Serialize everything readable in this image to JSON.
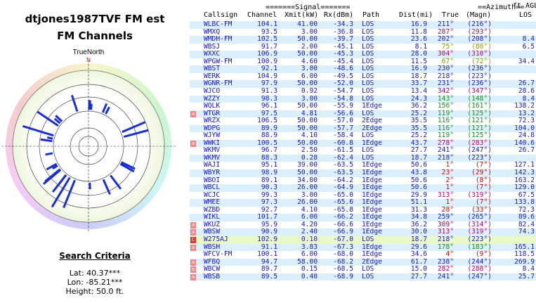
{
  "title": "dtjones1987TVF FM est",
  "subtitle": "FM Channels",
  "compass": {
    "label": "TrueNorth",
    "n": "N"
  },
  "criteria": {
    "heading": "Search Criteria",
    "lat": "Lat: 40.37***",
    "lon": "Lon: -85.21***",
    "height": "Height: 50.0 ft."
  },
  "header": {
    "signal_group": "=======Signal=======",
    "azimuth_group": "==Azimuth==",
    "ft_agl": "ft AGL",
    "columns": [
      "Callsign",
      "Channel",
      "Xmit(kW)",
      "Rx(dBm)",
      "Path",
      "Dist(mi)",
      "True",
      "(Magn)",
      "LOS"
    ]
  },
  "colors": {
    "row_even": "#dcefff",
    "row_highlight": "#eaf9c8",
    "text": "#1515c8",
    "grid": "#cccccc",
    "bar": "#1a2fd1"
  },
  "rows": [
    {
      "call": "WLBC-FM",
      "ch": "104.1",
      "kw": "41.00",
      "rx": "-34.3",
      "path": "LOS",
      "dist": "16.9",
      "true": "211°",
      "magn": "(216°)",
      "los": "",
      "color": "#1515c8",
      "flag": ""
    },
    {
      "call": "WMXQ",
      "ch": "93.5",
      "kw": "3.00",
      "rx": "-36.8",
      "path": "LOS",
      "dist": "11.8",
      "true": "287°",
      "magn": "(293°)",
      "los": "",
      "color": "#9b1463",
      "flag": ""
    },
    {
      "call": "WMDH-FM",
      "ch": "102.5",
      "kw": "50.00",
      "rx": "-39.7",
      "path": "LOS",
      "dist": "23.6",
      "true": "202°",
      "magn": "(208°)",
      "los": "8.4",
      "color": "#1515c8",
      "flag": ""
    },
    {
      "call": "WBSJ",
      "ch": "91.7",
      "kw": "2.00",
      "rx": "-45.1",
      "path": "LOS",
      "dist": "8.1",
      "true": "75°",
      "magn": "(80°)",
      "los": "6.5",
      "color": "#9a9a00",
      "flag": ""
    },
    {
      "call": "WXXC",
      "ch": "106.9",
      "kw": "50.00",
      "rx": "-45.3",
      "path": "LOS",
      "dist": "28.0",
      "true": "304°",
      "magn": "(310°)",
      "los": "",
      "color": "#b0006f",
      "flag": ""
    },
    {
      "call": "WPGW-FM",
      "ch": "100.9",
      "kw": "4.60",
      "rx": "-45.4",
      "path": "LOS",
      "dist": "11.5",
      "true": "67°",
      "magn": "(72°)",
      "los": "34.4",
      "color": "#8a9a00",
      "flag": ""
    },
    {
      "call": "WBST",
      "ch": "92.1",
      "kw": "3.00",
      "rx": "-48.6",
      "path": "LOS",
      "dist": "16.9",
      "true": "230°",
      "magn": "(236°)",
      "los": "",
      "color": "#1515c8",
      "flag": ""
    },
    {
      "call": "WERK",
      "ch": "104.9",
      "kw": "6.00",
      "rx": "-49.5",
      "path": "LOS",
      "dist": "18.7",
      "true": "218°",
      "magn": "(223°)",
      "los": "",
      "color": "#1515c8",
      "flag": ""
    },
    {
      "call": "WGNR-FM",
      "ch": "97.9",
      "kw": "50.00",
      "rx": "-52.0",
      "path": "LOS",
      "dist": "33.7",
      "true": "231°",
      "magn": "(236°)",
      "los": "26.7",
      "color": "#1515c8",
      "flag": ""
    },
    {
      "call": "WJCO",
      "ch": "91.3",
      "kw": "0.92",
      "rx": "-54.7",
      "path": "LOS",
      "dist": "13.4",
      "true": "342°",
      "magn": "(347°)",
      "los": "28.6",
      "color": "#b0006f",
      "flag": ""
    },
    {
      "call": "WZZY",
      "ch": "98.3",
      "kw": "3.00",
      "rx": "-54.8",
      "path": "LOS",
      "dist": "24.3",
      "true": "143°",
      "magn": "(148°)",
      "los": "8.4",
      "color": "#1a8a1a",
      "flag": ""
    },
    {
      "call": "WQLK",
      "ch": "96.1",
      "kw": "50.00",
      "rx": "-55.9",
      "path": "1Edge",
      "dist": "36.2",
      "true": "156°",
      "magn": "(161°)",
      "los": "138.2",
      "color": "#1a8a1a",
      "flag": ""
    },
    {
      "call": "WTGR",
      "ch": "97.5",
      "kw": "4.81",
      "rx": "-56.6",
      "path": "LOS",
      "dist": "25.2",
      "true": "119°",
      "magn": "(125°)",
      "los": "13.2",
      "color": "#1a8a1a",
      "flag": "a"
    },
    {
      "call": "WRZX",
      "ch": "106.5",
      "kw": "50.00",
      "rx": "-57.0",
      "path": "2Edge",
      "dist": "35.5",
      "true": "116°",
      "magn": "(121°)",
      "los": "72.3",
      "color": "#1a8a1a",
      "flag": ""
    },
    {
      "call": "WDPG",
      "ch": "89.9",
      "kw": "50.00",
      "rx": "-57.7",
      "path": "2Edge",
      "dist": "35.5",
      "true": "116°",
      "magn": "(121°)",
      "los": "104.0",
      "color": "#1a8a1a",
      "flag": ""
    },
    {
      "call": "WJYW",
      "ch": "88.9",
      "kw": "4.10",
      "rx": "-58.4",
      "path": "LOS",
      "dist": "25.2",
      "true": "119°",
      "magn": "(125°)",
      "los": "24.8",
      "color": "#1a8a1a",
      "flag": ""
    },
    {
      "call": "WWKI",
      "ch": "100.5",
      "kw": "50.00",
      "rx": "-60.8",
      "path": "1Edge",
      "dist": "43.7",
      "true": "278°",
      "magn": "(283°)",
      "los": "140.6",
      "color": "#b0006f",
      "flag": "a"
    },
    {
      "call": "WKMV",
      "ch": "96.7",
      "kw": "2.50",
      "rx": "-61.5",
      "path": "LOS",
      "dist": "27.7",
      "true": "241°",
      "magn": "(247°)",
      "los": "26.7",
      "color": "#1515c8",
      "flag": ""
    },
    {
      "call": "WKMV",
      "ch": "88.3",
      "kw": "0.28",
      "rx": "-62.4",
      "path": "LOS",
      "dist": "18.7",
      "true": "218°",
      "magn": "(223°)",
      "los": "",
      "color": "#1515c8",
      "flag": ""
    },
    {
      "call": "WAJI",
      "ch": "95.1",
      "kw": "39.00",
      "rx": "-63.5",
      "path": "1Edge",
      "dist": "50.6",
      "true": "1°",
      "magn": "(7°)",
      "los": "127.1",
      "color": "#d00000",
      "flag": ""
    },
    {
      "call": "WBYR",
      "ch": "98.9",
      "kw": "50.00",
      "rx": "-63.5",
      "path": "1Edge",
      "dist": "43.8",
      "true": "23°",
      "magn": "(29°)",
      "los": "142.3",
      "color": "#d00000",
      "flag": ""
    },
    {
      "call": "WBOI",
      "ch": "89.1",
      "kw": "34.00",
      "rx": "-64.2",
      "path": "1Edge",
      "dist": "50.6",
      "true": "2°",
      "magn": "(8°)",
      "los": "163.2",
      "color": "#d00000",
      "flag": ""
    },
    {
      "call": "WBCL",
      "ch": "90.3",
      "kw": "26.00",
      "rx": "-64.9",
      "path": "1Edge",
      "dist": "50.6",
      "true": "1°",
      "magn": "(7°)",
      "los": "129.0",
      "color": "#d00000",
      "flag": ""
    },
    {
      "call": "WCJC",
      "ch": "99.3",
      "kw": "3.00",
      "rx": "-65.0",
      "path": "1Edge",
      "dist": "29.9",
      "true": "313°",
      "magn": "(319°)",
      "los": "67.5",
      "color": "#b0006f",
      "flag": ""
    },
    {
      "call": "WMEE",
      "ch": "97.3",
      "kw": "26.00",
      "rx": "-65.6",
      "path": "1Edge",
      "dist": "51.1",
      "true": "1°",
      "magn": "(7°)",
      "los": "133.8",
      "color": "#d00000",
      "flag": ""
    },
    {
      "call": "WZBD",
      "ch": "92.7",
      "kw": "4.10",
      "rx": "-65.8",
      "path": "1Edge",
      "dist": "31.3",
      "true": "28°",
      "magn": "(33°)",
      "los": "72.3",
      "color": "#d00000",
      "flag": ""
    },
    {
      "call": "WIKL",
      "ch": "101.7",
      "kw": "6.00",
      "rx": "-66.2",
      "path": "1Edge",
      "dist": "34.8",
      "true": "259°",
      "magn": "(265°)",
      "los": "89.6",
      "color": "#1515c8",
      "flag": ""
    },
    {
      "call": "WKUZ",
      "ch": "95.9",
      "kw": "4.20",
      "rx": "-66.6",
      "path": "1Edge",
      "dist": "36.2",
      "true": "309°",
      "magn": "(314°)",
      "los": "82.4",
      "color": "#b0006f",
      "flag": "a"
    },
    {
      "call": "WBSW",
      "ch": "90.9",
      "kw": "2.40",
      "rx": "-66.9",
      "path": "1Edge",
      "dist": "30.0",
      "true": "313°",
      "magn": "(319°)",
      "los": "74.3",
      "color": "#b0006f",
      "flag": "a"
    },
    {
      "call": "W275AJ",
      "ch": "102.9",
      "kw": "0.10",
      "rx": "-67.0",
      "path": "LOS",
      "dist": "18.7",
      "true": "218°",
      "magn": "(223°)",
      "los": "",
      "color": "#1515c8",
      "flag": "C",
      "hl": true
    },
    {
      "call": "WBSH",
      "ch": "91.1",
      "kw": "3.83",
      "rx": "-67.3",
      "path": "1Edge",
      "dist": "29.6",
      "true": "178°",
      "magn": "(183°)",
      "los": "165.1",
      "color": "#1a8a1a",
      "flag": "a"
    },
    {
      "call": "WFCV-FM",
      "ch": "100.1",
      "kw": "6.00",
      "rx": "-68.0",
      "path": "1Edge",
      "dist": "34.6",
      "true": "4°",
      "magn": "(9°)",
      "los": "118.5",
      "color": "#d00000",
      "flag": ""
    },
    {
      "call": "WFBQ",
      "ch": "94.7",
      "kw": "58.00",
      "rx": "-68.2",
      "path": "2Edge",
      "dist": "61.7",
      "true": "238°",
      "magn": "(244°)",
      "los": "269.9",
      "color": "#1515c8",
      "flag": "a"
    },
    {
      "call": "WBCW",
      "ch": "89.7",
      "kw": "0.15",
      "rx": "-68.5",
      "path": "LOS",
      "dist": "15.0",
      "true": "282°",
      "magn": "(288°)",
      "los": "8.4",
      "color": "#b0006f",
      "flag": "a"
    },
    {
      "call": "WBSB",
      "ch": "89.5",
      "kw": "0.40",
      "rx": "-68.9",
      "path": "LOS",
      "dist": "27.7",
      "true": "241°",
      "magn": "(247°)",
      "los": "25.7",
      "color": "#1515c8",
      "flag": "a"
    }
  ]
}
